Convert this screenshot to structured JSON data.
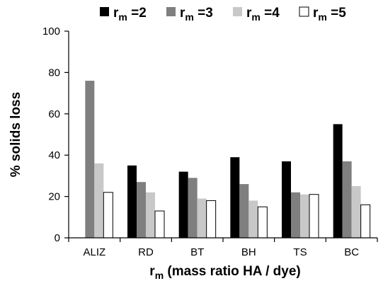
{
  "chart_data": {
    "type": "bar",
    "categories": [
      "ALIZ",
      "RD",
      "BT",
      "BH",
      "TS",
      "BC"
    ],
    "series": [
      {
        "name": "rm =2",
        "label_main": "r",
        "label_sub": "m",
        "label_suffix": " =2",
        "color": "#000000",
        "values": [
          null,
          35,
          32,
          39,
          37,
          55
        ]
      },
      {
        "name": "rm =3",
        "label_main": "r",
        "label_sub": "m",
        "label_suffix": " =3",
        "color": "#7f7f7f",
        "values": [
          76,
          27,
          29,
          26,
          22,
          37
        ]
      },
      {
        "name": "rm =4",
        "label_main": "r",
        "label_sub": "m",
        "label_suffix": " =4",
        "color": "#c8c8c8",
        "values": [
          36,
          22,
          19,
          18,
          21,
          25
        ]
      },
      {
        "name": "rm =5",
        "label_main": "r",
        "label_sub": "m",
        "label_suffix": " =5",
        "color": "#ffffff",
        "values": [
          22,
          13,
          18,
          15,
          21,
          16
        ]
      }
    ],
    "title": "",
    "ylabel": "% solids loss",
    "xlabel": "rm (mass ratio HA / dye)",
    "xlabel_main": "r",
    "xlabel_sub": "m",
    "xlabel_suffix": " (mass ratio HA / dye)",
    "ylim": [
      0,
      100
    ],
    "yticks": [
      0,
      20,
      40,
      60,
      80,
      100
    ],
    "legend_position": "top",
    "grid": false
  }
}
